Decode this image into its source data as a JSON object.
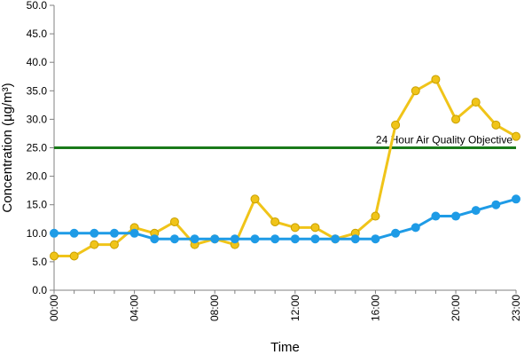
{
  "chart_data": {
    "type": "line",
    "title": "",
    "xlabel": "Time",
    "ylabel": "Concentration (µg/m³)",
    "ylim": [
      0,
      50
    ],
    "yticks": [
      "0.0",
      "5.0",
      "10.0",
      "15.0",
      "20.0",
      "25.0",
      "30.0",
      "35.0",
      "40.0",
      "45.0",
      "50.0"
    ],
    "x": [
      "00:00",
      "01:00",
      "02:00",
      "03:00",
      "04:00",
      "05:00",
      "06:00",
      "07:00",
      "08:00",
      "09:00",
      "10:00",
      "11:00",
      "12:00",
      "13:00",
      "14:00",
      "15:00",
      "16:00",
      "17:00",
      "18:00",
      "19:00",
      "20:00",
      "21:00",
      "22:00",
      "23:00"
    ],
    "xtick_labels": [
      "00:00",
      "04:00",
      "08:00",
      "12:00",
      "16:00",
      "20:00",
      "23:00"
    ],
    "grid": false,
    "series": [
      {
        "color": "#f0c419",
        "edge_color": "#c9a000",
        "values": [
          6,
          6,
          8,
          8,
          11,
          10,
          12,
          8,
          9,
          8,
          16,
          12,
          11,
          11,
          9,
          10,
          13,
          29,
          35,
          37,
          30,
          33,
          29,
          27
        ]
      },
      {
        "color": "#1e9be6",
        "edge_color": "#1e9be6",
        "values": [
          10,
          10,
          10,
          10,
          10,
          9,
          9,
          9,
          9,
          9,
          9,
          9,
          9,
          9,
          9,
          9,
          9,
          10,
          11,
          13,
          13,
          14,
          15,
          16
        ]
      }
    ],
    "reference_line": {
      "value": 25,
      "label": "24 Hour Air Quality Objective",
      "color": "#1a7a1a"
    }
  }
}
